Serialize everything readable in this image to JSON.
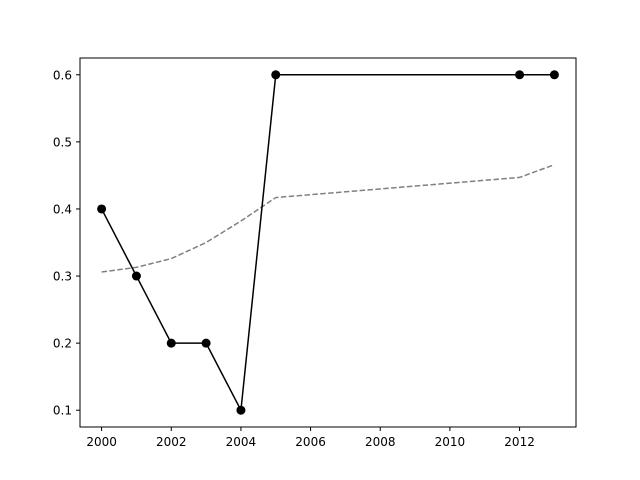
{
  "chart_data": {
    "type": "line",
    "title": "",
    "xlabel": "",
    "ylabel": "",
    "xlim": [
      1999.38,
      2013.62
    ],
    "ylim": [
      0.075,
      0.625
    ],
    "x_ticks": [
      2000,
      2002,
      2004,
      2006,
      2008,
      2010,
      2012
    ],
    "y_ticks": [
      0.1,
      0.2,
      0.3,
      0.4,
      0.5,
      0.6
    ],
    "x_tick_labels": [
      "2000",
      "2002",
      "2004",
      "2006",
      "2008",
      "2010",
      "2012"
    ],
    "y_tick_labels": [
      "0.1",
      "0.2",
      "0.3",
      "0.4",
      "0.5",
      "0.6"
    ],
    "grid": false,
    "legend": "none",
    "series": [
      {
        "style": "solid-with-markers",
        "color": "#000000",
        "x": [
          2000,
          2001,
          2002,
          2003,
          2004,
          2005,
          2012,
          2013
        ],
        "y": [
          0.4,
          0.3,
          0.2,
          0.2,
          0.1,
          0.6,
          0.6,
          0.6
        ]
      },
      {
        "style": "dashed",
        "color": "#808080",
        "x": [
          2000,
          2001,
          2002,
          2003,
          2004,
          2005,
          2012,
          2013
        ],
        "y": [
          0.306,
          0.313,
          0.326,
          0.35,
          0.382,
          0.417,
          0.447,
          0.466
        ]
      }
    ]
  }
}
